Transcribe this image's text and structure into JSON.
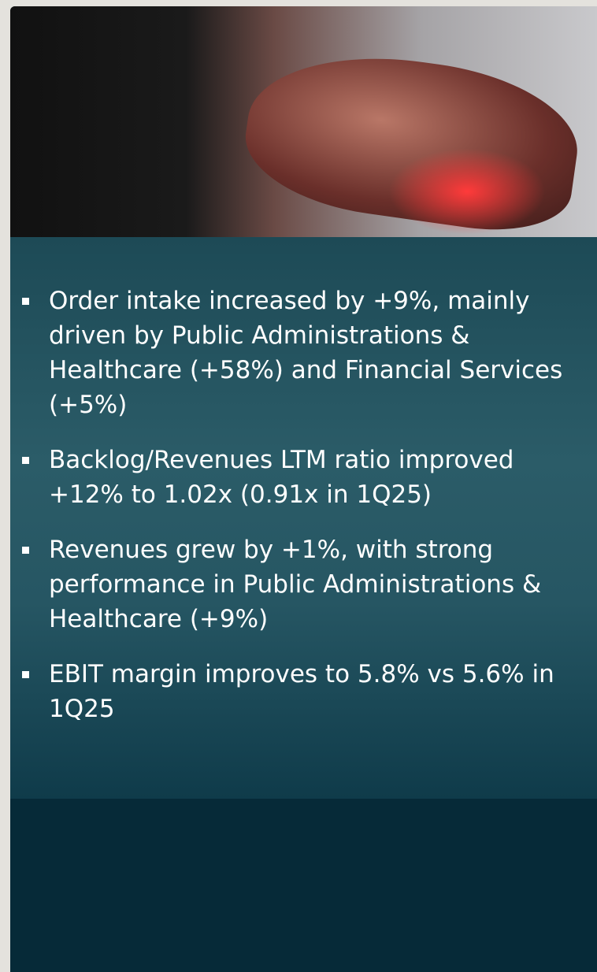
{
  "bullets": [
    "Order intake increased by +9%, mainly driven by Public Administrations & Healthcare (+58%) and Financial Services (+5%)",
    "Backlog/Revenues LTM ratio improved +12% to 1.02x (0.91x in 1Q25)",
    "Revenues grew by +1%, with strong performance in Public Administrations & Healthcare (+9%)",
    "EBIT margin improves to 5.8% vs 5.6% in 1Q25"
  ]
}
